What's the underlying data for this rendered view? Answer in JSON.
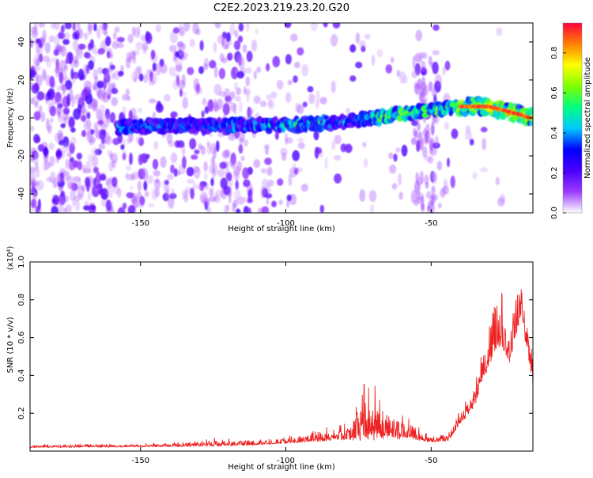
{
  "title": "C2E2.2023.219.23.20.G20",
  "chart_data": [
    {
      "type": "heatmap",
      "xlabel": "Height of straight line (km)",
      "ylabel": "Frequency (Hz)",
      "xlim": [
        -188,
        -15
      ],
      "ylim": [
        -50,
        50
      ],
      "x_ticks": [
        -150,
        -100,
        -50
      ],
      "y_ticks": [
        -40,
        -20,
        0,
        20,
        40
      ],
      "colorbar": {
        "label": "Normalized spectral amplitude",
        "range": [
          0,
          0.95
        ],
        "ticks": [
          0.0,
          0.2,
          0.4,
          0.6,
          0.8
        ],
        "colormap": [
          "#ffffff",
          "#9b3bff",
          "#4a00ff",
          "#0000ff",
          "#00c8ff",
          "#00ff80",
          "#80ff00",
          "#ffff00",
          "#ff8000",
          "#ff0040"
        ]
      },
      "ridge": {
        "description_points": [
          [
            -156,
            -5
          ],
          [
            -140,
            -4
          ],
          [
            -120,
            -4
          ],
          [
            -100,
            -4
          ],
          [
            -80,
            -2
          ],
          [
            -65,
            1
          ],
          [
            -50,
            4
          ],
          [
            -40,
            6
          ],
          [
            -30,
            6
          ],
          [
            -20,
            2
          ],
          [
            -16,
            0
          ]
        ],
        "peak_amplitude_x_range": [
          -40,
          -16
        ]
      }
    },
    {
      "type": "line",
      "xlabel": "Height of straight line (km)",
      "ylabel": "SNR (10 * v/v)",
      "y_multiplier": "(x10⁴)",
      "xlim": [
        -188,
        -15
      ],
      "ylim": [
        0,
        1.0
      ],
      "x_ticks": [
        -150,
        -100,
        -50
      ],
      "y_ticks": [
        0.2,
        0.4,
        0.6,
        0.8,
        1.0
      ],
      "series": [
        {
          "color": "#ee2222",
          "envelope": [
            {
              "x": -188,
              "base": 0.02,
              "amp": 0.015
            },
            {
              "x": -140,
              "base": 0.025,
              "amp": 0.02
            },
            {
              "x": -125,
              "base": 0.03,
              "amp": 0.04
            },
            {
              "x": -110,
              "base": 0.035,
              "amp": 0.03
            },
            {
              "x": -95,
              "base": 0.05,
              "amp": 0.04
            },
            {
              "x": -80,
              "base": 0.07,
              "amp": 0.08
            },
            {
              "x": -72,
              "base": 0.1,
              "amp": 0.33
            },
            {
              "x": -66,
              "base": 0.09,
              "amp": 0.2
            },
            {
              "x": -58,
              "base": 0.08,
              "amp": 0.1
            },
            {
              "x": -50,
              "base": 0.05,
              "amp": 0.03
            },
            {
              "x": -44,
              "base": 0.06,
              "amp": 0.04
            },
            {
              "x": -40,
              "base": 0.15,
              "amp": 0.1
            },
            {
              "x": -35,
              "base": 0.25,
              "amp": 0.1
            },
            {
              "x": -31,
              "base": 0.45,
              "amp": 0.3
            },
            {
              "x": -27,
              "base": 0.6,
              "amp": 0.4
            },
            {
              "x": -23,
              "base": 0.5,
              "amp": 0.25
            },
            {
              "x": -19,
              "base": 0.75,
              "amp": 0.25
            },
            {
              "x": -15,
              "base": 0.35,
              "amp": 0.15
            }
          ]
        }
      ]
    }
  ]
}
